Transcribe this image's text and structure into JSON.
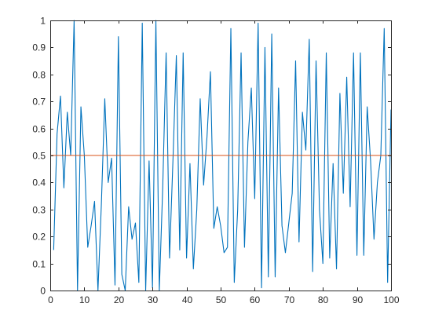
{
  "chart_data": {
    "type": "line",
    "title": "",
    "xlabel": "",
    "ylabel": "",
    "xlim": [
      0,
      100
    ],
    "ylim": [
      0,
      1
    ],
    "grid": false,
    "legend": "none",
    "x_ticks": [
      "0",
      "10",
      "20",
      "30",
      "40",
      "50",
      "60",
      "70",
      "80",
      "90",
      "100"
    ],
    "y_ticks": [
      "0",
      "0.1",
      "0.2",
      "0.3",
      "0.4",
      "0.5",
      "0.6",
      "0.7",
      "0.8",
      "0.9",
      "1"
    ],
    "axis_color": "#262626",
    "series": [
      {
        "color": "#0072BD",
        "x": [
          1,
          2,
          3,
          4,
          5,
          6,
          7,
          8,
          9,
          10,
          11,
          12,
          13,
          14,
          15,
          16,
          17,
          18,
          19,
          20,
          21,
          22,
          23,
          24,
          25,
          26,
          27,
          28,
          29,
          30,
          31,
          32,
          33,
          34,
          35,
          36,
          37,
          38,
          39,
          40,
          41,
          42,
          43,
          44,
          45,
          46,
          47,
          48,
          49,
          50,
          51,
          52,
          53,
          54,
          55,
          56,
          57,
          58,
          59,
          60,
          61,
          62,
          63,
          64,
          65,
          66,
          67,
          68,
          69,
          70,
          71,
          72,
          73,
          74,
          75,
          76,
          77,
          78,
          79,
          80,
          81,
          82,
          83,
          84,
          85,
          86,
          87,
          88,
          89,
          90,
          91,
          92,
          93,
          94,
          95,
          96,
          97,
          98,
          99,
          100
        ],
        "y": [
          0.15,
          0.58,
          0.72,
          0.38,
          0.66,
          0.5,
          1.0,
          0.0,
          0.68,
          0.5,
          0.16,
          0.24,
          0.33,
          0.0,
          0.32,
          0.71,
          0.4,
          0.49,
          0.02,
          0.94,
          0.06,
          0.0,
          0.31,
          0.19,
          0.25,
          0.03,
          0.99,
          0.0,
          0.48,
          0.01,
          1.0,
          0.0,
          0.38,
          0.88,
          0.12,
          0.48,
          0.87,
          0.15,
          0.88,
          0.12,
          0.47,
          0.08,
          0.3,
          0.71,
          0.39,
          0.57,
          0.81,
          0.23,
          0.31,
          0.24,
          0.14,
          0.16,
          0.97,
          0.03,
          0.3,
          0.88,
          0.16,
          0.55,
          0.75,
          0.34,
          0.99,
          0.01,
          0.9,
          0.05,
          0.95,
          0.05,
          0.75,
          0.24,
          0.14,
          0.25,
          0.36,
          0.85,
          0.18,
          0.66,
          0.52,
          0.93,
          0.07,
          0.85,
          0.3,
          0.1,
          0.88,
          0.12,
          0.47,
          0.08,
          0.73,
          0.36,
          0.79,
          0.31,
          0.88,
          0.13,
          0.88,
          0.13,
          0.68,
          0.48,
          0.19,
          0.4,
          0.5,
          0.97,
          0.03,
          0.67
        ]
      },
      {
        "color": "#D95319",
        "x": [
          0,
          100
        ],
        "y": [
          0.5,
          0.5
        ]
      }
    ]
  }
}
